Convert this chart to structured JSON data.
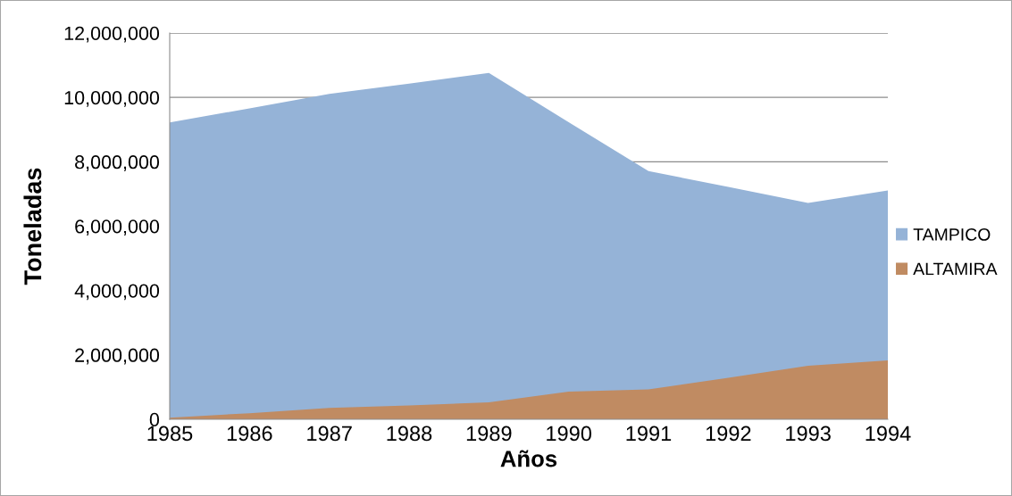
{
  "chart_data": {
    "type": "area",
    "xlabel": "Años",
    "ylabel": "Toneladas",
    "categories": [
      "1985",
      "1986",
      "1987",
      "1988",
      "1989",
      "1990",
      "1991",
      "1992",
      "1993",
      "1994"
    ],
    "series": [
      {
        "name": "TAMPICO",
        "color": "#95b3d7",
        "values": [
          9220000,
          9660000,
          10110000,
          10430000,
          10760000,
          9230000,
          7710000,
          7220000,
          6720000,
          7110000
        ]
      },
      {
        "name": "ALTAMIRA",
        "color": "#c08b62",
        "values": [
          50000,
          190000,
          350000,
          430000,
          530000,
          860000,
          930000,
          1290000,
          1660000,
          1830000
        ]
      }
    ],
    "ylim": [
      0,
      12000000
    ],
    "yticks": [
      0,
      {
        "value": 2000000,
        "label": "2,000,000"
      },
      {
        "value": 4000000,
        "label": "4,000,000"
      },
      {
        "value": 6000000,
        "label": "6,000,000"
      },
      {
        "value": 8000000,
        "label": "8,000,000"
      },
      {
        "value": 10000000,
        "label": "10,000,000"
      },
      {
        "value": 12000000,
        "label": "12,000,000"
      }
    ],
    "grid": "y",
    "legend": "right"
  }
}
